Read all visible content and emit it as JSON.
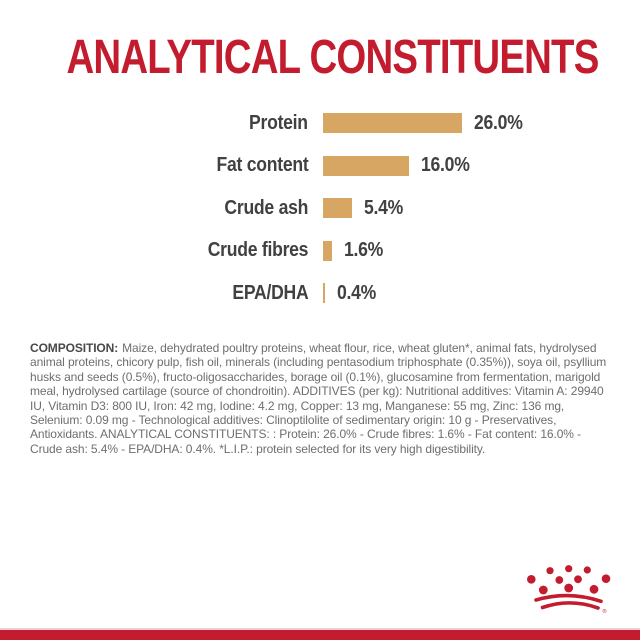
{
  "page": {
    "title": "ANALYTICAL CONSTITUENTS"
  },
  "chart_data": {
    "type": "bar",
    "orientation": "horizontal",
    "title": "ANALYTICAL CONSTITUENTS",
    "categories": [
      "Protein",
      "Fat content",
      "Crude ash",
      "Crude fibres",
      "EPA/DHA"
    ],
    "values": [
      26.0,
      16.0,
      5.4,
      1.6,
      0.4
    ],
    "value_labels": [
      "26.0%",
      "16.0%",
      "5.4%",
      "1.6%",
      "0.4%"
    ],
    "unit": "%",
    "xlim": [
      0,
      26
    ],
    "grid": false,
    "legend": false,
    "bar_color": "#d6a662",
    "label_color": "#414143"
  },
  "composition": {
    "heading": "COMPOSITION:",
    "body": "Maize, dehydrated poultry proteins, wheat flour, rice, wheat gluten*, animal fats, hydrolysed animal proteins, chicory pulp, fish oil, minerals (including pentasodium triphosphate (0.35%)), soya oil, psyllium husks and seeds (0.5%), fructo-oligosaccharides, borage oil (0.1%), glucosamine from fermentation, marigold meal, hydrolysed cartilage (source of chondroitin).  ADDITIVES (per kg): Nutritional additives: Vitamin A: 29940 IU, Vitamin D3: 800 IU, Iron: 42 mg, Iodine: 4.2 mg, Copper: 13 mg, Manganese: 55 mg, Zinc: 136 mg, Selenium: 0.09 mg - Technological additives: Clinoptilolite of sedimentary origin: 10 g - Preservatives, Antioxidants. ANALYTICAL CONSTITUENTS: : Protein: 26.0% - Crude fibres: 1.6% - Fat content: 16.0% - Crude ash: 5.4% - EPA/DHA: 0.4%.  *L.I.P.: protein selected for its very high digestibility."
  },
  "footer": {
    "logo": "royal-canin-crown",
    "registered_mark": "®",
    "logo_color": "#c31c2e",
    "bar_color": "#c31c2e",
    "accent_line_color": "#eeccd2"
  },
  "colors": {
    "brand_red": "#c31c2e",
    "bar_tan": "#d6a662",
    "text_dark": "#414143",
    "text_gray": "#6d6e70",
    "background": "#ffffff"
  }
}
